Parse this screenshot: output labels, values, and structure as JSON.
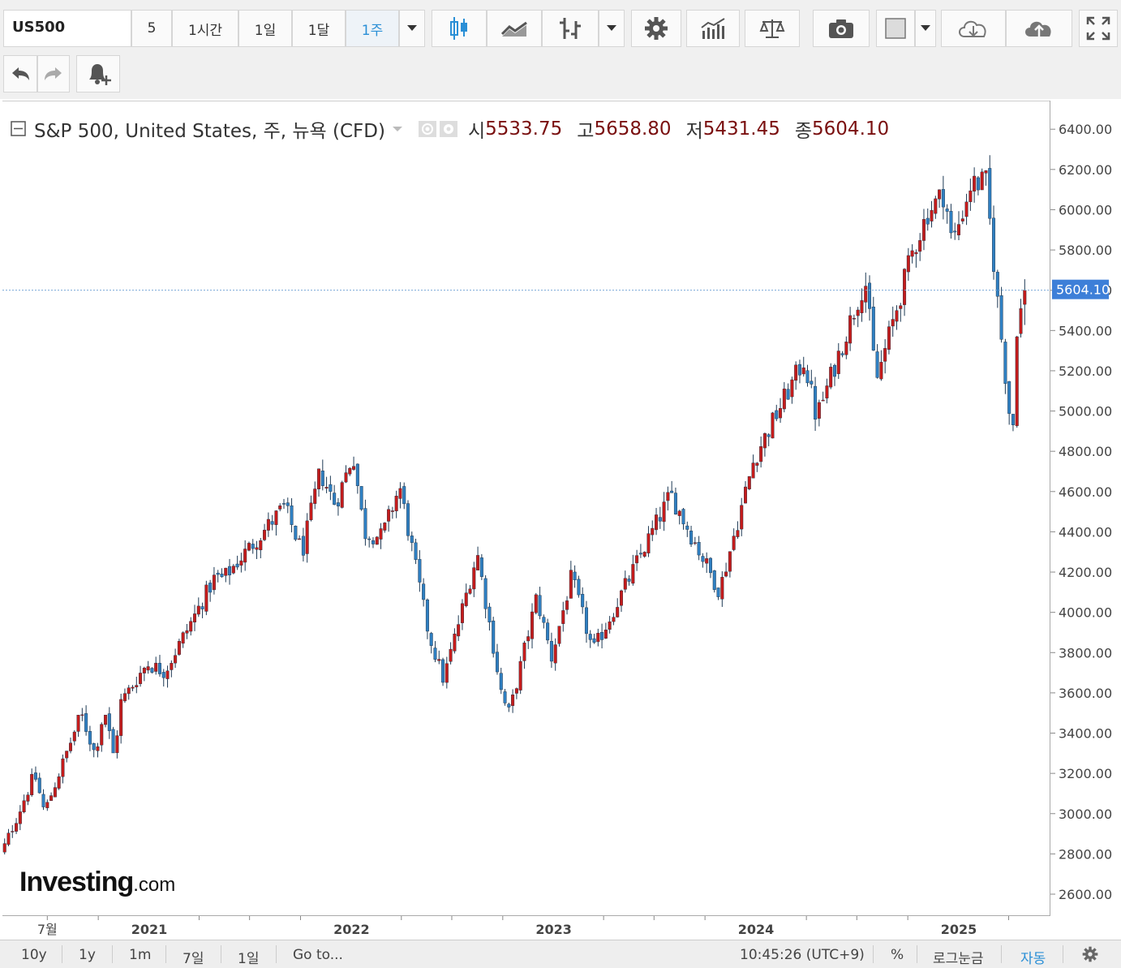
{
  "toolbar": {
    "symbol": "US500",
    "intervals": [
      "5",
      "1시간",
      "1일",
      "1달",
      "1주"
    ],
    "active_interval": "1주"
  },
  "legend": {
    "title": "S&P 500, United States, 주, 뉴욕 (CFD)",
    "open_label": "시",
    "open": "5533.75",
    "high_label": "고",
    "high": "5658.80",
    "low_label": "저",
    "low": "5431.45",
    "close_label": "종",
    "close": "5604.10"
  },
  "logo": {
    "main": "Investing",
    "suffix": ".com"
  },
  "colors": {
    "up": "#c41c1c",
    "down": "#2f7fc1",
    "accent": "#2a8fd6",
    "last_price_bg": "#3d7fd8"
  },
  "bottom": {
    "ranges": [
      "10y",
      "1y",
      "1m",
      "7일",
      "1일"
    ],
    "goto": "Go to...",
    "time": "10:45:26 (UTC+9)",
    "percent": "%",
    "log": "로그눈금",
    "auto": "자동"
  },
  "chart_data": {
    "type": "candlestick",
    "interval": "weekly",
    "last_price": 5604.1,
    "ylim": [
      2500,
      6500
    ],
    "y_ticks": [
      "2600.00",
      "2800.00",
      "3000.00",
      "3200.00",
      "3400.00",
      "3600.00",
      "3800.00",
      "4000.00",
      "4200.00",
      "4400.00",
      "4600.00",
      "4800.00",
      "5000.00",
      "5200.00",
      "5400.00",
      "5600.00",
      "5800.00",
      "6000.00",
      "6200.00",
      "6400.00"
    ],
    "x_ticks": [
      "7월",
      "2021",
      "2022",
      "2023",
      "2024",
      "2025"
    ],
    "anchors": [
      [
        "2020-04-01",
        2750
      ],
      [
        "2020-06-08",
        3200
      ],
      [
        "2020-06-26",
        3010
      ],
      [
        "2020-08-31",
        3500
      ],
      [
        "2020-09-25",
        3300
      ],
      [
        "2020-10-12",
        3530
      ],
      [
        "2020-10-30",
        3270
      ],
      [
        "2020-11-09",
        3550
      ],
      [
        "2020-12-28",
        3750
      ],
      [
        "2021-01-29",
        3710
      ],
      [
        "2021-04-30",
        4180
      ],
      [
        "2021-05-14",
        4170
      ],
      [
        "2021-09-02",
        4530
      ],
      [
        "2021-10-04",
        4300
      ],
      [
        "2021-11-05",
        4700
      ],
      [
        "2021-12-03",
        4540
      ],
      [
        "2022-01-04",
        4790
      ],
      [
        "2022-01-24",
        4400
      ],
      [
        "2022-02-25",
        4380
      ],
      [
        "2022-03-29",
        4630
      ],
      [
        "2022-05-20",
        3900
      ],
      [
        "2022-06-16",
        3670
      ],
      [
        "2022-08-16",
        4300
      ],
      [
        "2022-09-30",
        3580
      ],
      [
        "2022-10-13",
        3500
      ],
      [
        "2022-12-01",
        4080
      ],
      [
        "2022-12-28",
        3780
      ],
      [
        "2023-02-02",
        4180
      ],
      [
        "2023-03-13",
        3810
      ],
      [
        "2023-07-31",
        4590
      ],
      [
        "2023-10-27",
        4110
      ],
      [
        "2023-12-29",
        4770
      ],
      [
        "2024-03-28",
        5260
      ],
      [
        "2024-04-19",
        4970
      ],
      [
        "2024-07-16",
        5660
      ],
      [
        "2024-08-05",
        5150
      ],
      [
        "2024-10-10",
        5800
      ],
      [
        "2024-11-06",
        5990
      ],
      [
        "2024-12-06",
        6090
      ],
      [
        "2024-12-20",
        5830
      ],
      [
        "2025-01-23",
        6130
      ],
      [
        "2025-02-19",
        6140
      ],
      [
        "2025-03-13",
        5520
      ],
      [
        "2025-04-08",
        4850
      ],
      [
        "2025-04-14",
        5400
      ],
      [
        "2025-05-02",
        5604.1
      ]
    ]
  }
}
